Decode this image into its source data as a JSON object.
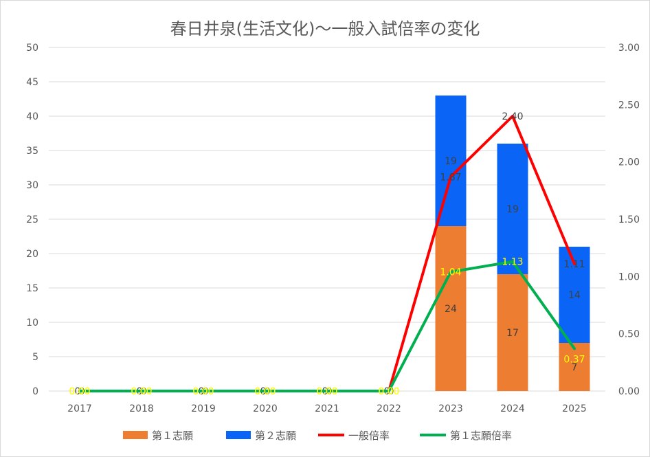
{
  "chart_data": {
    "type": "bar",
    "title": "春日井泉(生活文化)〜一般入試倍率の変化",
    "categories": [
      "2017",
      "2018",
      "2019",
      "2020",
      "2021",
      "2022",
      "2023",
      "2024",
      "2025"
    ],
    "y_left": {
      "min": 0,
      "max": 50,
      "step": 5,
      "ticks": [
        "0",
        "5",
        "10",
        "15",
        "20",
        "25",
        "30",
        "35",
        "40",
        "45",
        "50"
      ]
    },
    "y_right": {
      "min": 0,
      "max": 3,
      "step": 0.5,
      "ticks": [
        "0.00",
        "0.50",
        "1.00",
        "1.50",
        "2.00",
        "2.50",
        "3.00"
      ]
    },
    "grid": true,
    "legend_position": "bottom",
    "bar_series": [
      {
        "name": "第１志願",
        "color": "#ed7d31",
        "values": [
          0,
          0,
          0,
          0,
          0,
          0,
          24,
          17,
          7
        ],
        "labels": [
          "",
          "",
          "",
          "",
          "",
          "",
          "24",
          "17",
          "7"
        ]
      },
      {
        "name": "第２志願",
        "color": "#0a64f5",
        "values": [
          0,
          0,
          0,
          0,
          0,
          0,
          19,
          19,
          14
        ],
        "labels": [
          "",
          "",
          "",
          "",
          "",
          "",
          "19",
          "19",
          "14"
        ]
      }
    ],
    "line_series": [
      {
        "name": "一般倍率",
        "color": "#ff0000",
        "values": [
          0,
          0,
          0,
          0,
          0,
          0,
          1.87,
          2.4,
          1.11
        ],
        "labels": [
          "0.00",
          "0.00",
          "0.00",
          "0.00",
          "0.00",
          "0.00",
          "1.87",
          "2.40",
          "1.11"
        ]
      },
      {
        "name": "第１志願倍率",
        "color": "#00b050",
        "values": [
          0,
          0,
          0,
          0,
          0,
          0,
          1.04,
          1.13,
          0.37
        ],
        "labels": [
          "0.00",
          "0.00",
          "0.00",
          "0.00",
          "0.00",
          "0.00",
          "1.04",
          "1.13",
          "0.37"
        ]
      }
    ],
    "zero_bar_labels": [
      "0",
      "0",
      "0",
      "0",
      "0",
      "0"
    ]
  }
}
